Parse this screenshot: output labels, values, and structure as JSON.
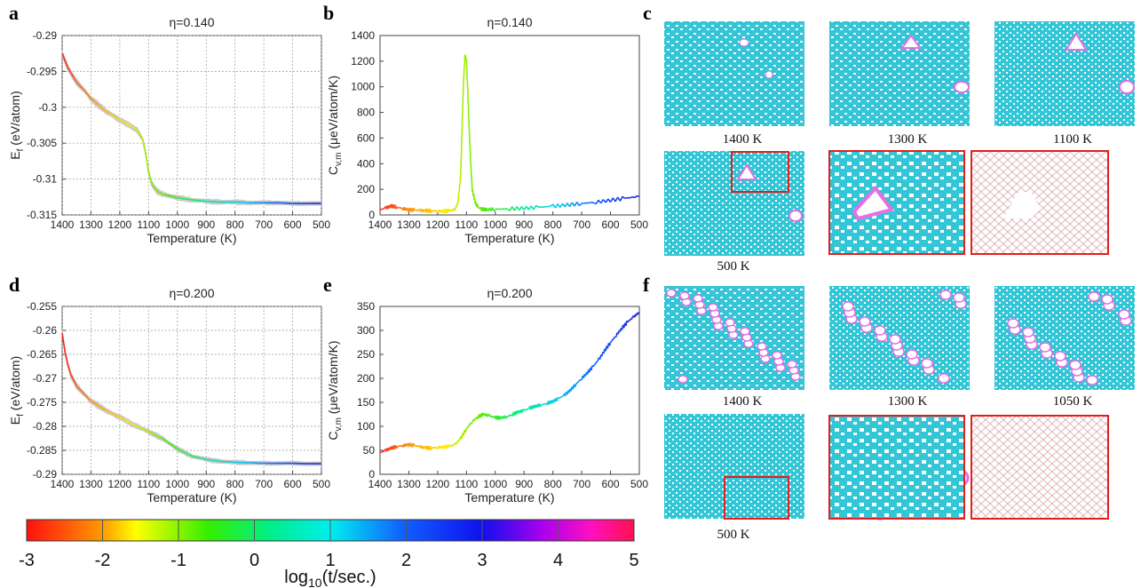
{
  "panels": {
    "a": "a",
    "b": "b",
    "c": "c",
    "d": "d",
    "e": "e",
    "f": "f"
  },
  "colors": {
    "cyan": "#33c6d6",
    "magenta": "#e66ee6",
    "frame_red": "#e02020",
    "gray_traces": "#c8c8c8",
    "lattice_pink": "#d8a0a8"
  },
  "chart_data": [
    {
      "id": "a",
      "type": "line",
      "title": "η=0.140",
      "xlabel": "Temperature (K)",
      "ylabel": "E_f (eV/atom)",
      "ylabel_main": "E",
      "ylabel_sub": "f",
      "ylabel_rest": " (eV/atom)",
      "xlim": [
        1400,
        500
      ],
      "ylim": [
        -0.315,
        -0.29
      ],
      "xticks": [
        1400,
        1300,
        1200,
        1100,
        1000,
        900,
        800,
        700,
        600,
        500
      ],
      "xtick_labels": [
        "1400",
        "1300",
        "1200",
        "1100",
        "1000",
        "900",
        "800",
        "700",
        "600",
        "500"
      ],
      "yticks": [
        -0.29,
        -0.295,
        -0.3,
        -0.305,
        -0.31,
        -0.315
      ],
      "ytick_labels": [
        "-0.29",
        "-0.295",
        "-0.3",
        "-0.305",
        "-0.31",
        "-0.315"
      ],
      "grid": true,
      "series": [
        {
          "x": [
            1400,
            1380,
            1350,
            1320,
            1300,
            1270,
            1250,
            1220,
            1200,
            1180,
            1160,
            1140,
            1120,
            1110,
            1100,
            1090,
            1080,
            1070,
            1050,
            1030,
            1000,
            950,
            900,
            850,
            800,
            750,
            700,
            650,
            600,
            550,
            500
          ],
          "values": [
            -0.2925,
            -0.2945,
            -0.2965,
            -0.2978,
            -0.2988,
            -0.2998,
            -0.3005,
            -0.3012,
            -0.3018,
            -0.3022,
            -0.3026,
            -0.3032,
            -0.3045,
            -0.3065,
            -0.309,
            -0.3105,
            -0.3112,
            -0.3117,
            -0.3121,
            -0.3123,
            -0.3126,
            -0.3129,
            -0.3131,
            -0.3132,
            -0.3132,
            -0.3133,
            -0.3133,
            -0.3133,
            -0.3134,
            -0.3134,
            -0.3134
          ]
        }
      ]
    },
    {
      "id": "b",
      "type": "line",
      "title": "η=0.140",
      "xlabel": "Temperature (K)",
      "ylabel": "C_v,m (μeV/atom/K)",
      "ylabel_main": "C",
      "ylabel_sub": "v,m",
      "ylabel_rest": " (μeV/atom/K)",
      "xlim": [
        1400,
        500
      ],
      "ylim": [
        0,
        1400
      ],
      "xticks": [
        1400,
        1300,
        1200,
        1100,
        1000,
        900,
        800,
        700,
        600,
        500
      ],
      "xtick_labels": [
        "1400",
        "1300",
        "1200",
        "1100",
        "1000",
        "900",
        "800",
        "700",
        "600",
        "500"
      ],
      "yticks": [
        0,
        200,
        400,
        600,
        800,
        1000,
        1200,
        1400
      ],
      "ytick_labels": [
        "0",
        "200",
        "400",
        "600",
        "800",
        "1000",
        "1200",
        "1400"
      ],
      "grid": false,
      "series": [
        {
          "x": [
            1400,
            1380,
            1360,
            1340,
            1320,
            1300,
            1280,
            1260,
            1240,
            1220,
            1200,
            1180,
            1160,
            1140,
            1130,
            1120,
            1115,
            1110,
            1105,
            1100,
            1095,
            1090,
            1085,
            1080,
            1070,
            1060,
            1050,
            1030,
            1000,
            950,
            900,
            850,
            800,
            750,
            700,
            650,
            600,
            550,
            500
          ],
          "values": [
            40,
            55,
            70,
            60,
            50,
            40,
            38,
            35,
            33,
            32,
            30,
            30,
            32,
            40,
            90,
            300,
            700,
            1050,
            1250,
            1200,
            950,
            650,
            400,
            200,
            100,
            60,
            45,
            42,
            45,
            48,
            52,
            60,
            68,
            78,
            90,
            100,
            115,
            130,
            145
          ]
        }
      ]
    },
    {
      "id": "d",
      "type": "line",
      "title": "η=0.200",
      "xlabel": "Temperature (K)",
      "ylabel": "E_f (eV/atom)",
      "ylabel_main": "E",
      "ylabel_sub": "f",
      "ylabel_rest": " (eV/atom)",
      "xlim": [
        1400,
        500
      ],
      "ylim": [
        -0.29,
        -0.255
      ],
      "xticks": [
        1400,
        1300,
        1200,
        1100,
        1000,
        900,
        800,
        700,
        600,
        500
      ],
      "xtick_labels": [
        "1400",
        "1300",
        "1200",
        "1100",
        "1000",
        "900",
        "800",
        "700",
        "600",
        "500"
      ],
      "yticks": [
        -0.255,
        -0.26,
        -0.265,
        -0.27,
        -0.275,
        -0.28,
        -0.285,
        -0.29
      ],
      "ytick_labels": [
        "-0.255",
        "-0.26",
        "-0.265",
        "-0.27",
        "-0.275",
        "-0.28",
        "-0.285",
        "-0.29"
      ],
      "grid": true,
      "series": [
        {
          "x": [
            1400,
            1390,
            1380,
            1370,
            1350,
            1320,
            1300,
            1250,
            1200,
            1150,
            1100,
            1050,
            1000,
            950,
            900,
            850,
            800,
            750,
            700,
            650,
            600,
            550,
            500
          ],
          "values": [
            -0.2605,
            -0.2645,
            -0.2672,
            -0.2692,
            -0.2716,
            -0.2735,
            -0.2747,
            -0.2766,
            -0.2781,
            -0.2797,
            -0.2811,
            -0.2826,
            -0.2847,
            -0.2862,
            -0.2869,
            -0.2873,
            -0.2875,
            -0.2876,
            -0.2877,
            -0.2877,
            -0.2877,
            -0.2878,
            -0.2878
          ]
        }
      ]
    },
    {
      "id": "e",
      "type": "line",
      "title": "η=0.200",
      "xlabel": "Temperature (K)",
      "ylabel": "C_v,m (μeV/atom/K)",
      "ylabel_main": "C",
      "ylabel_sub": "v,m",
      "ylabel_rest": " (μeV/atom/K)",
      "xlim": [
        1400,
        500
      ],
      "ylim": [
        0,
        350
      ],
      "xticks": [
        1400,
        1300,
        1200,
        1100,
        1000,
        900,
        800,
        700,
        600,
        500
      ],
      "xtick_labels": [
        "1400",
        "1300",
        "1200",
        "1100",
        "1000",
        "900",
        "800",
        "700",
        "600",
        "500"
      ],
      "yticks": [
        0,
        50,
        100,
        150,
        200,
        250,
        300,
        350
      ],
      "ytick_labels": [
        "0",
        "50",
        "100",
        "150",
        "200",
        "250",
        "300",
        "350"
      ],
      "grid": false,
      "series": [
        {
          "x": [
            1400,
            1380,
            1360,
            1340,
            1320,
            1300,
            1280,
            1260,
            1240,
            1220,
            1200,
            1180,
            1160,
            1140,
            1120,
            1100,
            1080,
            1060,
            1040,
            1020,
            1000,
            980,
            960,
            940,
            920,
            900,
            880,
            860,
            840,
            820,
            800,
            780,
            760,
            740,
            720,
            700,
            680,
            660,
            640,
            620,
            600,
            580,
            560,
            540,
            520,
            500
          ],
          "values": [
            45,
            50,
            55,
            58,
            60,
            62,
            60,
            57,
            55,
            55,
            56,
            57,
            58,
            62,
            75,
            95,
            110,
            120,
            125,
            122,
            118,
            118,
            120,
            125,
            130,
            133,
            138,
            142,
            145,
            148,
            152,
            158,
            165,
            175,
            188,
            200,
            212,
            225,
            240,
            258,
            275,
            290,
            305,
            318,
            328,
            338
          ]
        }
      ]
    }
  ],
  "images": {
    "c": {
      "row1": [
        {
          "label": "1400 K"
        },
        {
          "label": "1300 K"
        },
        {
          "label": "1100 K"
        }
      ],
      "row2": [
        {
          "label": "500 K"
        },
        {
          "label": ""
        },
        {
          "label": ""
        }
      ]
    },
    "f": {
      "row1": [
        {
          "label": "1400 K"
        },
        {
          "label": "1300 K"
        },
        {
          "label": "1050 K"
        }
      ],
      "row2": [
        {
          "label": "500 K"
        },
        {
          "label": ""
        },
        {
          "label": ""
        }
      ]
    }
  },
  "colorbar": {
    "label_main": "log",
    "label_sub": "10",
    "label_rest": "(t/sec.)",
    "ticks": [
      "-3",
      "-2",
      "-1",
      "0",
      "1",
      "2",
      "3",
      "4",
      "5"
    ]
  }
}
